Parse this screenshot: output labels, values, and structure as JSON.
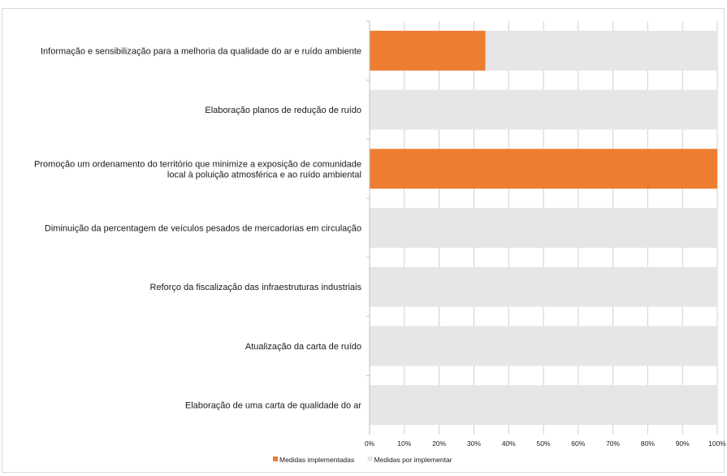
{
  "chart_data": {
    "type": "bar",
    "orientation": "horizontal",
    "stacked": "percent",
    "categories": [
      [
        "Informação e sensibilização para a melhoria da qualidade do ar e ruído ambiente"
      ],
      [
        "Elaboração planos de redução de ruído"
      ],
      [
        "Promoção um ordenamento do território que minimize a exposição de comunidade",
        "local à poluição atmosférica e ao ruído ambiental"
      ],
      [
        "Diminuição da percentagem de veículos pesados de mercadorias em circulação"
      ],
      [
        "Reforço da fiscalização das infraestruturas industriais"
      ],
      [
        "Atualização da carta de ruído"
      ],
      [
        "Elaboração de uma carta de qualidade do ar"
      ]
    ],
    "series": [
      {
        "name": "Medidas implementadas",
        "color": "#ed7d31",
        "values": [
          33.3,
          0,
          100,
          0,
          0,
          0,
          0
        ]
      },
      {
        "name": "Medidas por implementar",
        "color": "#e6e6e6",
        "values": [
          66.7,
          100,
          0,
          100,
          100,
          100,
          100
        ]
      }
    ],
    "xlim": [
      0,
      100
    ],
    "xticks": [
      "0%",
      "10%",
      "20%",
      "30%",
      "40%",
      "50%",
      "60%",
      "70%",
      "80%",
      "90%",
      "100%"
    ],
    "grid": true,
    "gridColor": "#d0d0d0",
    "legend": "bottom"
  }
}
